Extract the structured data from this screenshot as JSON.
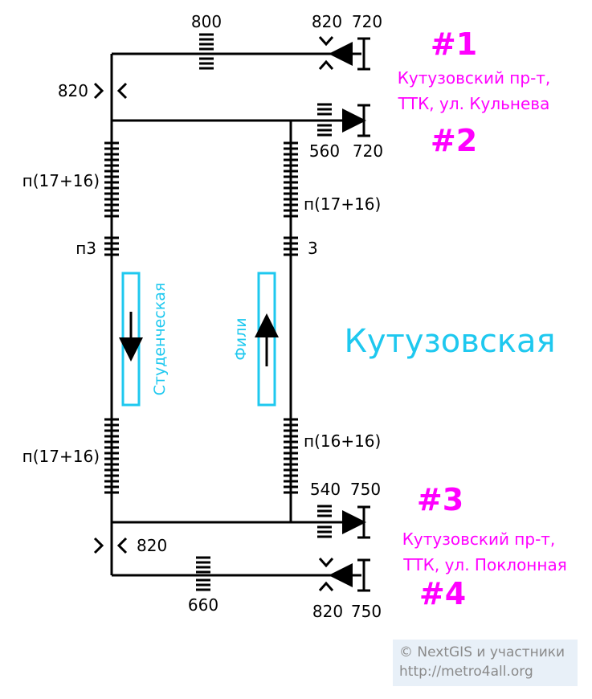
{
  "colors": {
    "line": "#000000",
    "exit": "#ff00ff",
    "station": "#1ec8ef",
    "credit_bg": "#e8f0f8",
    "credit_text": "#8a8a8a"
  },
  "station_name": "Кутузовская",
  "platforms": {
    "left": "Студенческая",
    "right": "Фили"
  },
  "exits": [
    {
      "id": "#1",
      "desc1": "Кутузовский пр-т,",
      "desc2": "ТТК, ул. Кульнева"
    },
    {
      "id": "#2"
    },
    {
      "id": "#3",
      "desc1": "Кутузовский пр-т,",
      "desc2": "ТТК, ул. Поклонная"
    },
    {
      "id": "#4"
    }
  ],
  "labels": {
    "top_stairs": "800",
    "exit1_ramp": "820",
    "exit1_gate": "720",
    "left_ramp_top": "820",
    "exit2_stairs": "560",
    "exit2_gate": "720",
    "left_upper_stairs": "п(17+16)",
    "right_upper_stairs": "п(17+16)",
    "left_upper_short": "п3",
    "right_upper_short": "3",
    "left_lower_stairs": "п(17+16)",
    "right_lower_stairs": "п(16+16)",
    "exit3_stairs": "540",
    "exit3_gate": "750",
    "left_ramp_bottom": "820",
    "bottom_stairs": "660",
    "exit4_ramp": "820",
    "exit4_gate": "750"
  },
  "credit": {
    "line1": "© NextGIS и участники",
    "line2": "http://metro4all.org"
  }
}
